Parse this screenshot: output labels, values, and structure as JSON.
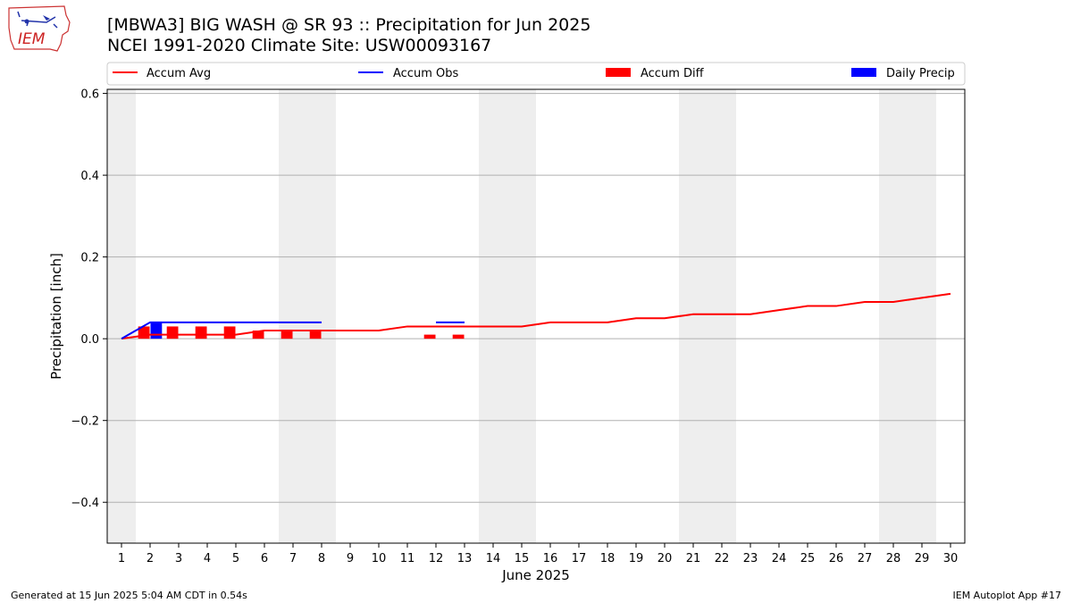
{
  "header": {
    "title_line1": "[MBWA3] BIG WASH @ SR 93 :: Precipitation for Jun 2025",
    "title_line2": "NCEI 1991-2020 Climate Site: USW00093167",
    "logo_text": "IEM"
  },
  "footer": {
    "generated": "Generated at 15 Jun 2025 5:04 AM CDT in 0.54s",
    "app": "IEM Autoplot App #17"
  },
  "colors": {
    "accum_avg": "#ff0000",
    "accum_obs": "#0000ff",
    "accum_diff": "#ff0000",
    "daily_precip": "#0000ff",
    "weekend_shade": "#eeeeee",
    "grid": "#b0b0b0"
  },
  "chart_data": {
    "type": "line",
    "title": "[MBWA3] BIG WASH @ SR 93 :: Precipitation for Jun 2025",
    "xlabel": "June 2025",
    "ylabel": "Precipitation [inch]",
    "xlim": [
      0.5,
      30.5
    ],
    "ylim": [
      -0.5,
      0.61
    ],
    "yticks": [
      -0.4,
      -0.2,
      0.0,
      0.2,
      0.4,
      0.6
    ],
    "ytick_labels": [
      "−0.4",
      "−0.2",
      "0.0",
      "0.2",
      "0.4",
      "0.6"
    ],
    "xticks": [
      1,
      2,
      3,
      4,
      5,
      6,
      7,
      8,
      9,
      10,
      11,
      12,
      13,
      14,
      15,
      16,
      17,
      18,
      19,
      20,
      21,
      22,
      23,
      24,
      25,
      26,
      27,
      28,
      29,
      30
    ],
    "weekend_days": [
      1,
      7,
      8,
      14,
      15,
      21,
      22,
      28,
      29
    ],
    "legend": {
      "placement": "top",
      "entries": [
        "Accum Avg",
        "Accum Obs",
        "Accum Diff",
        "Daily Precip"
      ]
    },
    "series": [
      {
        "name": "Accum Avg",
        "kind": "line",
        "x": [
          1,
          2,
          3,
          4,
          5,
          6,
          7,
          8,
          9,
          10,
          11,
          12,
          13,
          14,
          15,
          16,
          17,
          18,
          19,
          20,
          21,
          22,
          23,
          24,
          25,
          26,
          27,
          28,
          29,
          30
        ],
        "values": [
          0.0,
          0.01,
          0.01,
          0.01,
          0.01,
          0.02,
          0.02,
          0.02,
          0.02,
          0.02,
          0.03,
          0.03,
          0.03,
          0.03,
          0.03,
          0.04,
          0.04,
          0.04,
          0.05,
          0.05,
          0.06,
          0.06,
          0.06,
          0.07,
          0.08,
          0.08,
          0.09,
          0.09,
          0.1,
          0.11
        ]
      },
      {
        "name": "Accum Obs",
        "kind": "line",
        "segments": [
          {
            "x": [
              1,
              2,
              3,
              4,
              5,
              6,
              7,
              8
            ],
            "values": [
              0.0,
              0.04,
              0.04,
              0.04,
              0.04,
              0.04,
              0.04,
              0.04
            ]
          },
          {
            "x": [
              12,
              13
            ],
            "values": [
              0.04,
              0.04
            ]
          }
        ]
      },
      {
        "name": "Accum Diff",
        "kind": "bar",
        "x": [
          2,
          3,
          4,
          5,
          6,
          7,
          8,
          12,
          13
        ],
        "values": [
          0.03,
          0.03,
          0.03,
          0.03,
          0.02,
          0.02,
          0.02,
          0.01,
          0.01
        ]
      },
      {
        "name": "Daily Precip",
        "kind": "bar",
        "x": [
          2
        ],
        "values": [
          0.04
        ]
      }
    ]
  }
}
